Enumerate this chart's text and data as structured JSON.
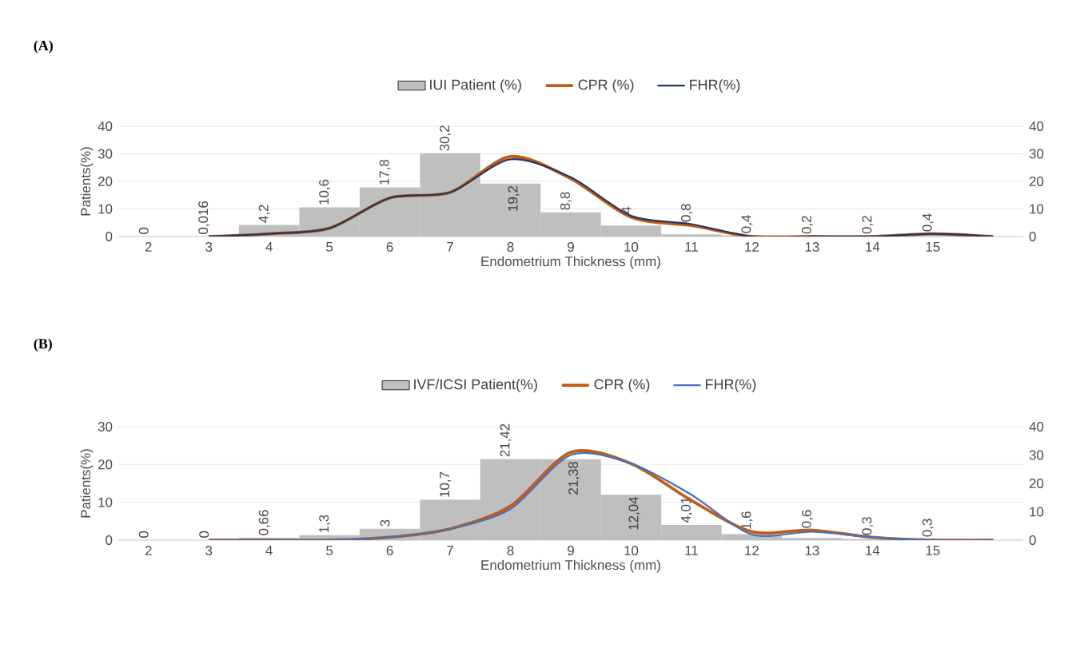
{
  "chart_data": [
    {
      "type": "bar",
      "title": "(A)",
      "xlabel": "Endometrium Thickness  (mm)",
      "ylabel": "Patients(%)",
      "categories": [
        "2",
        "3",
        "4",
        "5",
        "6",
        "7",
        "8",
        "9",
        "10",
        "11",
        "12",
        "13",
        "14",
        "15",
        null
      ],
      "series": [
        {
          "name": "IUI Patient (%)",
          "type": "bar",
          "color": "#bfbfbf",
          "values": [
            0,
            0.016,
            4.2,
            10.6,
            17.8,
            30.2,
            19.2,
            8.8,
            4,
            0.8,
            0.4,
            0.2,
            0.2,
            0.4,
            null
          ],
          "value_labels": [
            "0",
            "0,016",
            "4,2",
            "10,6",
            "17,8",
            "30,2",
            "19,2",
            "8,8",
            "4",
            "0,8",
            "0,4",
            "0,2",
            "0,2",
            "0,4",
            null
          ]
        },
        {
          "name": "CPR (%)",
          "type": "line",
          "axis": "y2",
          "color": "#c55a11",
          "values": [
            null,
            0,
            1,
            3,
            14,
            16,
            29,
            21,
            7,
            4,
            0,
            0,
            0,
            1,
            0
          ]
        },
        {
          "name": "FHR(%)",
          "type": "line",
          "axis": "y2",
          "color": "#1f3864",
          "values": [
            null,
            0,
            1,
            3,
            14,
            16,
            28,
            21.5,
            7.5,
            4.5,
            0,
            0,
            0,
            1,
            0
          ]
        }
      ],
      "ylim": [
        0,
        40
      ],
      "yticks": [
        0,
        10,
        20,
        30,
        40
      ],
      "y2lim": [
        0,
        40
      ],
      "y2ticks": [
        0,
        10,
        20,
        30,
        40
      ],
      "grid": "y",
      "legend": "top"
    },
    {
      "type": "bar",
      "title": "(B)",
      "xlabel": "Endometrium Thickness (mm)",
      "ylabel": "Patients(%)",
      "categories": [
        "2",
        "3",
        "4",
        "5",
        "6",
        "7",
        "8",
        "9",
        "10",
        "11",
        "12",
        "13",
        "14",
        "15",
        null
      ],
      "series": [
        {
          "name": "IVF/ICSI Patient(%)",
          "type": "bar",
          "color": "#bfbfbf",
          "values": [
            0,
            0,
            0.66,
            1.3,
            3,
            10.7,
            21.42,
            21.38,
            12.04,
            4.01,
            1.6,
            0.6,
            0.3,
            0.3,
            null
          ],
          "value_labels": [
            "0",
            "0",
            "0,66",
            "1,3",
            "3",
            "10,7",
            "21,42",
            "21,38",
            "12,04",
            "4,01",
            "1,6",
            "0,6",
            "0,3",
            "0,3",
            null
          ]
        },
        {
          "name": "CPR (%)",
          "type": "line",
          "axis": "y2",
          "color": "#c55a11",
          "values": [
            null,
            0,
            0,
            0,
            1,
            4,
            12,
            31,
            27,
            14,
            3,
            3.5,
            1,
            0,
            0
          ]
        },
        {
          "name": "FHR(%)",
          "type": "line",
          "axis": "y2",
          "color": "#4472c4",
          "values": [
            null,
            0,
            0,
            0,
            1,
            4,
            11,
            30,
            27,
            16,
            2,
            3,
            1,
            0,
            0
          ]
        }
      ],
      "ylim": [
        0,
        30
      ],
      "yticks": [
        0,
        10,
        20,
        30
      ],
      "y2lim": [
        0,
        40
      ],
      "y2ticks": [
        0,
        10,
        20,
        30,
        40
      ],
      "grid": "y",
      "legend": "top"
    }
  ]
}
